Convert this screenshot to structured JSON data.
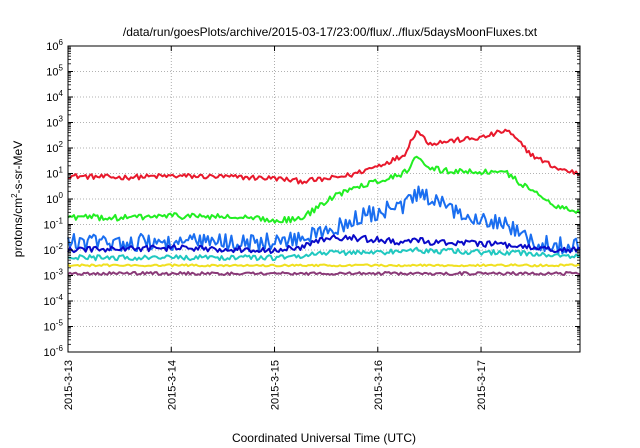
{
  "chart_data": {
    "type": "line",
    "title": "/data/run/goesPlots/archive/2015-03-17/23:00/flux/../flux/5daysMoonFluxes.txt",
    "xlabel": "Coordinated Universal Time (UTC)",
    "ylabel": "protons/cm2-s-sr-MeV",
    "ylabel_parts": {
      "before": "protons/cm",
      "sup": "2",
      "after": "-s-sr-MeV"
    },
    "y_scale": "log",
    "ylim": [
      1e-06,
      1000000.0
    ],
    "y_ticks": [
      {
        "base": "10",
        "exp": "-6",
        "value": 1e-06
      },
      {
        "base": "10",
        "exp": "-5",
        "value": 1e-05
      },
      {
        "base": "10",
        "exp": "-4",
        "value": 0.0001
      },
      {
        "base": "10",
        "exp": "-3",
        "value": 0.001
      },
      {
        "base": "10",
        "exp": "-2",
        "value": 0.01
      },
      {
        "base": "10",
        "exp": "-1",
        "value": 0.1
      },
      {
        "base": "10",
        "exp": "0",
        "value": 1
      },
      {
        "base": "10",
        "exp": "1",
        "value": 10
      },
      {
        "base": "10",
        "exp": "2",
        "value": 100
      },
      {
        "base": "10",
        "exp": "3",
        "value": 1000
      },
      {
        "base": "10",
        "exp": "4",
        "value": 10000
      },
      {
        "base": "10",
        "exp": "5",
        "value": 100000
      },
      {
        "base": "10",
        "exp": "6",
        "value": 1000000
      }
    ],
    "xlim": [
      "2015-03-13",
      "2015-03-17 23:00"
    ],
    "x_ticks": [
      "2015-3-13",
      "2015-3-14",
      "2015-3-15",
      "2015-3-16",
      "2015-3-17"
    ],
    "x_tick_dates": [
      "2015-03-13",
      "2015-03-14",
      "2015-03-15",
      "2015-03-16",
      "2015-03-17"
    ],
    "grid": true,
    "legend": "none",
    "x_sample_dates": [
      "2015-03-13 00:00",
      "2015-03-13 12:00",
      "2015-03-14 00:00",
      "2015-03-14 12:00",
      "2015-03-15 00:00",
      "2015-03-15 06:00",
      "2015-03-15 12:00",
      "2015-03-15 18:00",
      "2015-03-16 00:00",
      "2015-03-16 06:00",
      "2015-03-16 09:00",
      "2015-03-16 12:00",
      "2015-03-16 18:00",
      "2015-03-17 00:00",
      "2015-03-17 06:00",
      "2015-03-17 12:00",
      "2015-03-17 18:00",
      "2015-03-17 23:00"
    ],
    "series": [
      {
        "color": "#e8192c",
        "values": [
          8,
          7,
          8,
          7.5,
          6.5,
          5,
          6,
          9,
          20,
          50,
          500,
          150,
          200,
          250,
          500,
          50,
          15,
          10
        ],
        "noise": 0.1
      },
      {
        "color": "#22ee22",
        "values": [
          0.2,
          0.18,
          0.22,
          0.2,
          0.15,
          0.16,
          0.8,
          3,
          5,
          10,
          40,
          15,
          12,
          12,
          10,
          2,
          0.5,
          0.3
        ],
        "noise": 0.12
      },
      {
        "color": "#1a6ef0",
        "values": [
          0.02,
          0.02,
          0.02,
          0.02,
          0.02,
          0.03,
          0.05,
          0.15,
          0.3,
          0.5,
          1.5,
          1.0,
          0.3,
          0.2,
          0.1,
          0.02,
          0.015,
          0.02
        ],
        "noise": 0.35
      },
      {
        "color": "#0a0ac8",
        "values": [
          0.01,
          0.011,
          0.012,
          0.011,
          0.01,
          0.012,
          0.03,
          0.03,
          0.025,
          0.02,
          0.025,
          0.02,
          0.02,
          0.018,
          0.015,
          0.012,
          0.01,
          0.01
        ],
        "noise": 0.12
      },
      {
        "color": "#20c8c0",
        "values": [
          0.005,
          0.005,
          0.005,
          0.005,
          0.005,
          0.006,
          0.008,
          0.008,
          0.008,
          0.009,
          0.01,
          0.009,
          0.009,
          0.008,
          0.008,
          0.007,
          0.006,
          0.006
        ],
        "noise": 0.1
      },
      {
        "color": "#f0e020",
        "values": [
          0.0025,
          0.0025,
          0.0025,
          0.0025,
          0.0025,
          0.0025,
          0.0025,
          0.0025,
          0.0025,
          0.0025,
          0.0025,
          0.0025,
          0.0025,
          0.0025,
          0.0025,
          0.0025,
          0.0025,
          0.0025
        ],
        "noise": 0.04
      },
      {
        "color": "#8a3a78",
        "values": [
          0.0012,
          0.0012,
          0.0012,
          0.0012,
          0.0012,
          0.0012,
          0.0012,
          0.0012,
          0.0012,
          0.0012,
          0.0012,
          0.0012,
          0.0012,
          0.0012,
          0.0012,
          0.0012,
          0.0012,
          0.0012
        ],
        "noise": 0.06
      }
    ]
  }
}
